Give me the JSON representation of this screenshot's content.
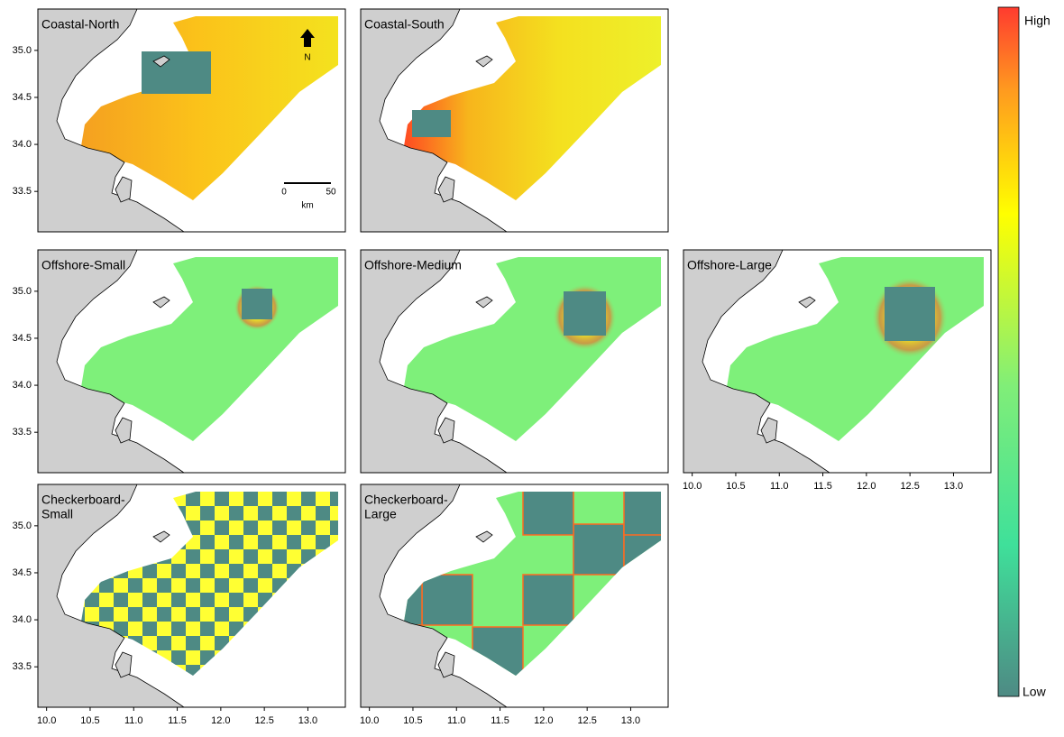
{
  "panels": [
    {
      "label": [
        "Coastal-North"
      ]
    },
    {
      "label": [
        "Coastal-South"
      ]
    },
    {
      "label": [
        "Offshore-Small"
      ]
    },
    {
      "label": [
        "Offshore-Medium"
      ]
    },
    {
      "label": [
        "Offshore-Large"
      ]
    },
    {
      "label": [
        "Checkerboard-",
        "Small"
      ]
    },
    {
      "label": [
        "Checkerboard-",
        "Large"
      ]
    }
  ],
  "lat_lim": [
    33.07,
    35.44
  ],
  "lon_lim": [
    9.9,
    13.43
  ],
  "lat_ticks": [
    {
      "value": 35,
      "label": "35.0"
    },
    {
      "value": 34.5,
      "label": "34.5"
    },
    {
      "value": 34,
      "label": "34.0"
    },
    {
      "value": 33.5,
      "label": "33.5"
    }
  ],
  "lon_ticks": [
    {
      "value": 10,
      "label": "10.0"
    },
    {
      "value": 10.5,
      "label": "10.5"
    },
    {
      "value": 11,
      "label": "11.0"
    },
    {
      "value": 11.5,
      "label": "11.5"
    },
    {
      "value": 12,
      "label": "12.0"
    },
    {
      "value": 12.5,
      "label": "12.5"
    },
    {
      "value": 13,
      "label": "13.0"
    }
  ],
  "scale_bar": {
    "start": "0",
    "end": "50",
    "unit": "km"
  },
  "north": "N",
  "legend": {
    "high": "High",
    "low": "Low"
  }
}
